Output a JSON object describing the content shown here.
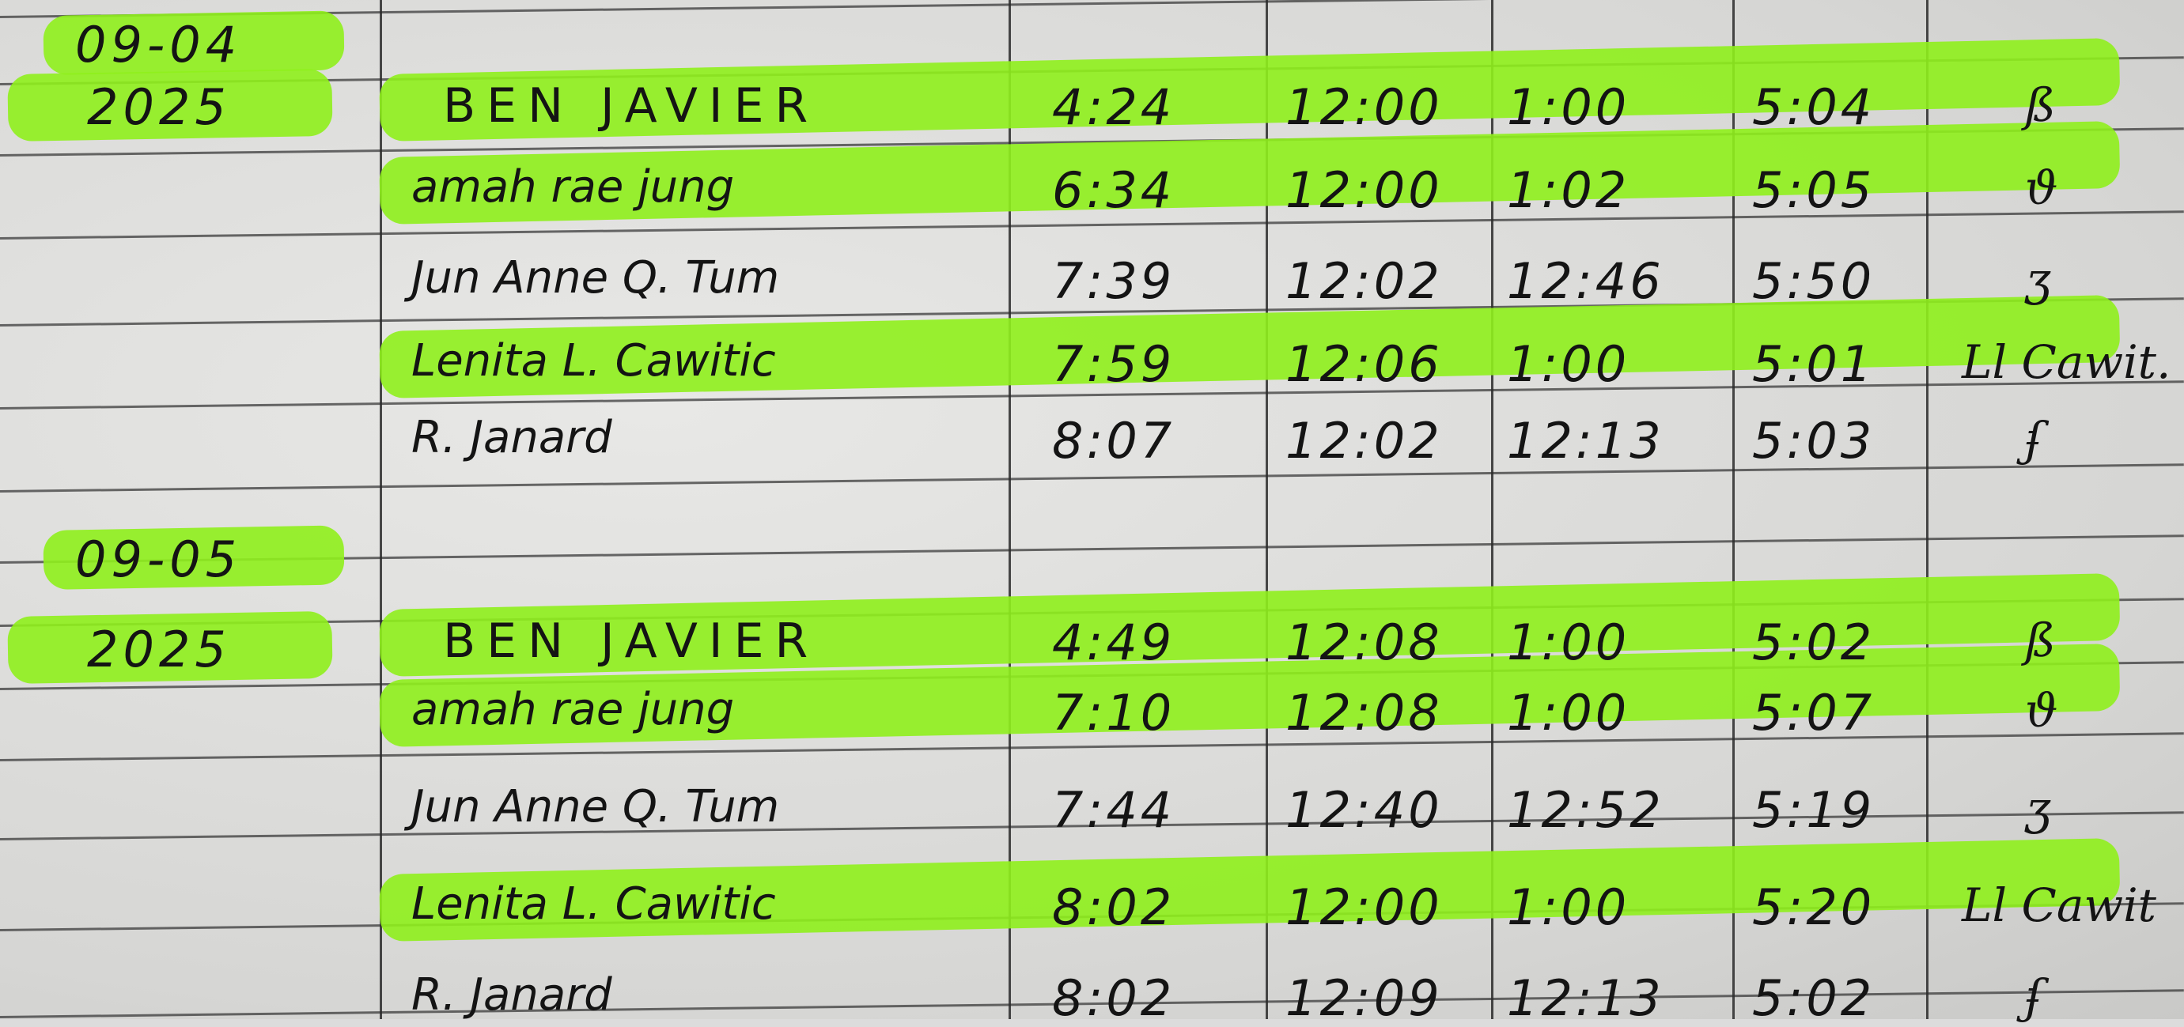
{
  "logbook": {
    "highlight_color": "#8fef1c",
    "sections": [
      {
        "date": "09-04",
        "year": "2025",
        "entries": [
          {
            "name": "BEN JAVIER",
            "time_in_am": "4:24",
            "time_out_am": "12:00",
            "time_in_pm": "1:00",
            "time_out_pm": "5:04",
            "signature": "ß",
            "highlighted": true
          },
          {
            "name": "amah rae jung",
            "time_in_am": "6:34",
            "time_out_am": "12:00",
            "time_in_pm": "1:02",
            "time_out_pm": "5:05",
            "signature": "ϑ",
            "highlighted": true
          },
          {
            "name": "Jun Anne Q. Tum",
            "time_in_am": "7:39",
            "time_out_am": "12:02",
            "time_in_pm": "12:46",
            "time_out_pm": "5:50",
            "signature": "ʒ",
            "highlighted": false
          },
          {
            "name": "Lenita L. Cawitic",
            "time_in_am": "7:59",
            "time_out_am": "12:06",
            "time_in_pm": "1:00",
            "time_out_pm": "5:01",
            "signature": "Ll Cawit.",
            "highlighted": true
          },
          {
            "name": "R. Janard",
            "time_in_am": "8:07",
            "time_out_am": "12:02",
            "time_in_pm": "12:13",
            "time_out_pm": "5:03",
            "signature": "ʄ",
            "highlighted": false
          }
        ]
      },
      {
        "date": "09-05",
        "year": "2025",
        "entries": [
          {
            "name": "BEN JAVIER",
            "time_in_am": "4:49",
            "time_out_am": "12:08",
            "time_in_pm": "1:00",
            "time_out_pm": "5:02",
            "signature": "ß",
            "highlighted": true
          },
          {
            "name": "amah rae jung",
            "time_in_am": "7:10",
            "time_out_am": "12:08",
            "time_in_pm": "1:00",
            "time_out_pm": "5:07",
            "signature": "ϑ",
            "highlighted": true
          },
          {
            "name": "Jun Anne Q. Tum",
            "time_in_am": "7:44",
            "time_out_am": "12:40",
            "time_in_pm": "12:52",
            "time_out_pm": "5:19",
            "signature": "ʒ",
            "highlighted": false
          },
          {
            "name": "Lenita L. Cawitic",
            "time_in_am": "8:02",
            "time_out_am": "12:00",
            "time_in_pm": "1:00",
            "time_out_pm": "5:20",
            "signature": "Ll Cawit",
            "highlighted": true
          },
          {
            "name": "R. Janard",
            "time_in_am": "8:02",
            "time_out_am": "12:09",
            "time_in_pm": "12:13",
            "time_out_pm": "5:02",
            "signature": "ʄ",
            "highlighted": false
          }
        ]
      }
    ]
  }
}
